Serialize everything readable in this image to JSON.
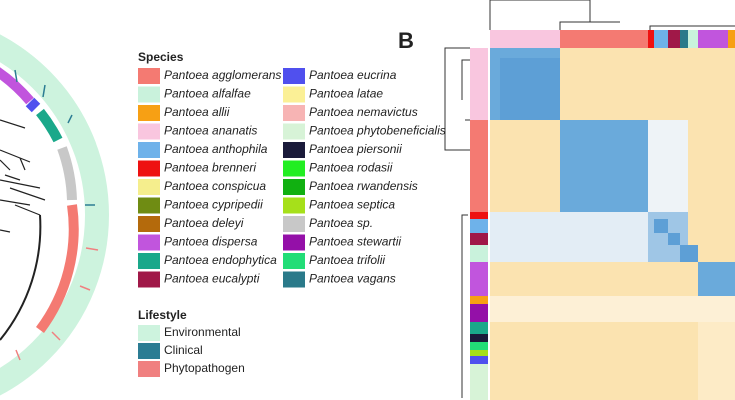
{
  "panel_label": "B",
  "legend": {
    "title": "Species",
    "species": [
      {
        "label": "Pantoea agglomerans",
        "color": "#f47a72"
      },
      {
        "label": "Pantoea alfalfae",
        "color": "#c9f2dc"
      },
      {
        "label": "Pantoea allii",
        "color": "#f7a014"
      },
      {
        "label": "Pantoea ananatis",
        "color": "#f9c6df"
      },
      {
        "label": "Pantoea anthophila",
        "color": "#6eb2ea"
      },
      {
        "label": "Pantoea brenneri",
        "color": "#ee1111"
      },
      {
        "label": "Pantoea conspicua",
        "color": "#f5ee8d"
      },
      {
        "label": "Pantoea cypripedii",
        "color": "#6f8c13"
      },
      {
        "label": "Pantoea deleyi",
        "color": "#b46a0c"
      },
      {
        "label": "Pantoea dispersa",
        "color": "#c155dd"
      },
      {
        "label": "Pantoea endophytica",
        "color": "#1aa88a"
      },
      {
        "label": "Pantoea eucalypti",
        "color": "#a01848"
      },
      {
        "label": "Pantoea eucrina",
        "color": "#5050ee"
      },
      {
        "label": "Pantoea latae",
        "color": "#fbf096"
      },
      {
        "label": "Pantoea nemavictus",
        "color": "#f7b4b4"
      },
      {
        "label": "Pantoea phytobeneficialis",
        "color": "#d7f3d7"
      },
      {
        "label": "Pantoea piersonii",
        "color": "#1a1a3a"
      },
      {
        "label": "Pantoea rodasii",
        "color": "#22ee22"
      },
      {
        "label": "Pantoea rwandensis",
        "color": "#11b011"
      },
      {
        "label": "Pantoea septica",
        "color": "#a6e01a"
      },
      {
        "label": "Pantoea sp.",
        "color": "#c8c8c8"
      },
      {
        "label": "Pantoea stewartii",
        "color": "#9410a8"
      },
      {
        "label": "Pantoea trifolii",
        "color": "#22dd77"
      },
      {
        "label": "Pantoea vagans",
        "color": "#2a7a8a"
      }
    ]
  },
  "lifestyle": {
    "title": "Lifestyle",
    "items": [
      {
        "label": "Environmental",
        "color": "#cdf3de"
      },
      {
        "label": "Clinical",
        "color": "#2b7c93"
      },
      {
        "label": "Phytopathogen",
        "color": "#f08080"
      }
    ]
  }
}
